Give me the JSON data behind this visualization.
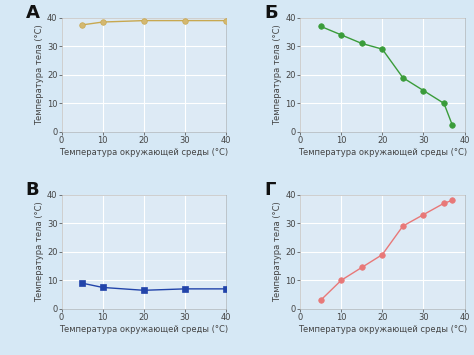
{
  "background_color": "#d6e8f5",
  "plot_bg_color": "#ddeaf5",
  "grid_color": "#ffffff",
  "subplots": [
    {
      "label": "А",
      "x": [
        5,
        10,
        20,
        30,
        40
      ],
      "y": [
        37.5,
        38.5,
        39.0,
        39.0,
        39.0
      ],
      "color": "#c8a850",
      "marker": "o",
      "markersize": 4,
      "markerfacecolor": "#d4b870",
      "ylim": [
        0,
        40
      ],
      "xlim": [
        0,
        40
      ],
      "yticks": [
        0,
        10,
        20,
        30,
        40
      ],
      "xticks": [
        0,
        10,
        20,
        30,
        40
      ]
    },
    {
      "label": "Б",
      "x": [
        5,
        10,
        15,
        20,
        25,
        30,
        35,
        37
      ],
      "y": [
        37.0,
        34.0,
        31.0,
        29.0,
        19.0,
        14.5,
        10.0,
        2.5
      ],
      "color": "#3a9c3a",
      "marker": "o",
      "markersize": 4,
      "markerfacecolor": "#3a9c3a",
      "ylim": [
        0,
        40
      ],
      "xlim": [
        0,
        40
      ],
      "yticks": [
        0,
        10,
        20,
        30,
        40
      ],
      "xticks": [
        0,
        10,
        20,
        30,
        40
      ]
    },
    {
      "label": "В",
      "x": [
        5,
        10,
        20,
        30,
        40
      ],
      "y": [
        9.0,
        7.5,
        6.5,
        7.0,
        7.0
      ],
      "color": "#2244aa",
      "marker": "s",
      "markersize": 4,
      "markerfacecolor": "#2244aa",
      "ylim": [
        0,
        40
      ],
      "xlim": [
        0,
        40
      ],
      "yticks": [
        0,
        10,
        20,
        30,
        40
      ],
      "xticks": [
        0,
        10,
        20,
        30,
        40
      ]
    },
    {
      "label": "Г",
      "x": [
        5,
        10,
        15,
        20,
        25,
        30,
        35,
        37
      ],
      "y": [
        3.0,
        10.0,
        14.5,
        19.0,
        29.0,
        33.0,
        37.0,
        38.0
      ],
      "color": "#e87878",
      "marker": "o",
      "markersize": 4,
      "markerfacecolor": "#e87878",
      "ylim": [
        0,
        40
      ],
      "xlim": [
        0,
        40
      ],
      "yticks": [
        0,
        10,
        20,
        30,
        40
      ],
      "xticks": [
        0,
        10,
        20,
        30,
        40
      ]
    }
  ],
  "xlabel": "Температура окружающей среды (°С)",
  "ylabel": "Температура тела (°С)",
  "label_fontsize": 6.0,
  "tick_fontsize": 6.0,
  "letter_fontsize": 13,
  "linewidth": 1.0
}
